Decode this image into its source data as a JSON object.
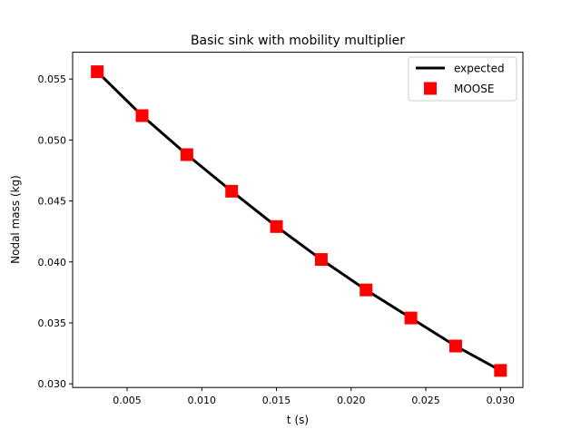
{
  "chart_data": {
    "type": "line",
    "title": "Basic sink with mobility multiplier",
    "xlabel": "t (s)",
    "ylabel": "Nodal mass (kg)",
    "xlim": [
      0.00135,
      0.0315
    ],
    "ylim": [
      0.0297,
      0.0572
    ],
    "xticks": [
      0.005,
      0.01,
      0.015,
      0.02,
      0.025,
      0.03
    ],
    "xtick_labels": [
      "0.005",
      "0.010",
      "0.015",
      "0.020",
      "0.025",
      "0.030"
    ],
    "yticks": [
      0.03,
      0.035,
      0.04,
      0.045,
      0.05,
      0.055
    ],
    "ytick_labels": [
      "0.030",
      "0.035",
      "0.040",
      "0.045",
      "0.050",
      "0.055"
    ],
    "grid": false,
    "legend_position": "upper right",
    "x": [
      0.003,
      0.006,
      0.009,
      0.012,
      0.015,
      0.018,
      0.021,
      0.024,
      0.027,
      0.03
    ],
    "series": [
      {
        "name": "expected",
        "style": "line",
        "color": "#000000",
        "values": [
          0.0556,
          0.052,
          0.0488,
          0.0458,
          0.0429,
          0.0402,
          0.0377,
          0.0354,
          0.0331,
          0.0311
        ]
      },
      {
        "name": "MOOSE",
        "style": "square-marker",
        "color": "#ff0000",
        "values": [
          0.0556,
          0.052,
          0.0488,
          0.0458,
          0.0429,
          0.0402,
          0.0377,
          0.0354,
          0.0331,
          0.0311
        ]
      }
    ]
  }
}
